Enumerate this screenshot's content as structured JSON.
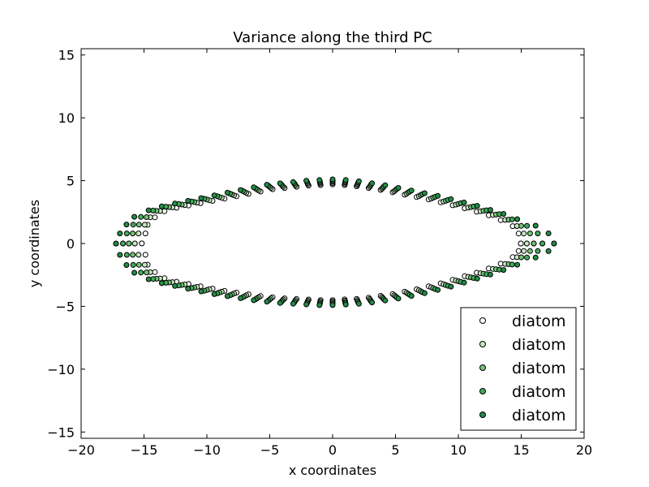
{
  "chart_data": {
    "type": "scatter",
    "title": "Variance along the third PC",
    "xlabel": "x coordinates",
    "ylabel": "y coordinates",
    "xlim": [
      -20,
      20
    ],
    "ylim": [
      -15.5,
      15.5
    ],
    "xticks": [
      -20,
      -15,
      -10,
      -5,
      0,
      5,
      10,
      15,
      20
    ],
    "yticks": [
      -15,
      -10,
      -5,
      0,
      5,
      10,
      15
    ],
    "grid": false,
    "legend_position": "bottom-right",
    "legend_labels": [
      "diatom",
      "diatom",
      "diatom",
      "diatom",
      "diatom"
    ],
    "series_colors": [
      "#ffffff",
      "#c7e9c0",
      "#74c476",
      "#41ab5d",
      "#238b45"
    ],
    "outline": {
      "top": [
        [
          -16.2,
          0.0
        ],
        [
          -15.9,
          0.8
        ],
        [
          -15.4,
          1.5
        ],
        [
          -14.8,
          2.1
        ],
        [
          -14.0,
          2.6
        ],
        [
          -13.0,
          2.9
        ],
        [
          -12.0,
          3.1
        ],
        [
          -11.0,
          3.3
        ],
        [
          -10.0,
          3.5
        ],
        [
          -9.0,
          3.7
        ],
        [
          -8.0,
          3.9
        ],
        [
          -7.0,
          4.1
        ],
        [
          -6.0,
          4.3
        ],
        [
          -5.0,
          4.5
        ],
        [
          -4.0,
          4.6
        ],
        [
          -3.0,
          4.7
        ],
        [
          -2.0,
          4.8
        ],
        [
          -1.0,
          4.85
        ],
        [
          0.0,
          4.9
        ],
        [
          1.0,
          4.85
        ],
        [
          2.0,
          4.75
        ],
        [
          3.0,
          4.6
        ],
        [
          4.0,
          4.45
        ],
        [
          5.0,
          4.25
        ],
        [
          6.0,
          4.05
        ],
        [
          7.0,
          3.85
        ],
        [
          8.0,
          3.65
        ],
        [
          9.0,
          3.4
        ],
        [
          10.0,
          3.15
        ],
        [
          11.0,
          2.9
        ],
        [
          12.0,
          2.6
        ],
        [
          13.0,
          2.3
        ],
        [
          14.0,
          1.9
        ],
        [
          15.0,
          1.4
        ],
        [
          15.7,
          0.8
        ],
        [
          16.0,
          0.0
        ]
      ],
      "bottom": [
        [
          -16.2,
          0.0
        ],
        [
          -15.9,
          -0.9
        ],
        [
          -15.4,
          -1.7
        ],
        [
          -14.8,
          -2.3
        ],
        [
          -14.0,
          -2.8
        ],
        [
          -13.0,
          -3.1
        ],
        [
          -12.0,
          -3.3
        ],
        [
          -11.0,
          -3.5
        ],
        [
          -10.0,
          -3.7
        ],
        [
          -9.0,
          -3.9
        ],
        [
          -8.0,
          -4.05
        ],
        [
          -7.0,
          -4.2
        ],
        [
          -6.0,
          -4.35
        ],
        [
          -5.0,
          -4.45
        ],
        [
          -4.0,
          -4.55
        ],
        [
          -3.0,
          -4.6
        ],
        [
          -2.0,
          -4.65
        ],
        [
          -1.0,
          -4.7
        ],
        [
          0.0,
          -4.7
        ],
        [
          1.0,
          -4.65
        ],
        [
          2.0,
          -4.6
        ],
        [
          3.0,
          -4.5
        ],
        [
          4.0,
          -4.35
        ],
        [
          5.0,
          -4.2
        ],
        [
          6.0,
          -4.0
        ],
        [
          7.0,
          -3.8
        ],
        [
          8.0,
          -3.55
        ],
        [
          9.0,
          -3.3
        ],
        [
          10.0,
          -3.0
        ],
        [
          11.0,
          -2.7
        ],
        [
          12.0,
          -2.4
        ],
        [
          13.0,
          -2.05
        ],
        [
          14.0,
          -1.65
        ],
        [
          15.0,
          -1.1
        ],
        [
          15.7,
          -0.6
        ],
        [
          16.0,
          0.0
        ]
      ]
    },
    "series_variation": {
      "x_scale": [
        0.955,
        0.98,
        1.0,
        1.02,
        1.045
      ],
      "y_shift_factor": [
        -0.2,
        -0.1,
        0.0,
        0.1,
        0.2
      ],
      "tip_shift": [
        -0.6,
        -0.3,
        0.0,
        0.3,
        0.6
      ],
      "left_tip_shift": [
        1.0,
        0.5,
        0.0,
        -0.5,
        -1.0
      ]
    }
  }
}
